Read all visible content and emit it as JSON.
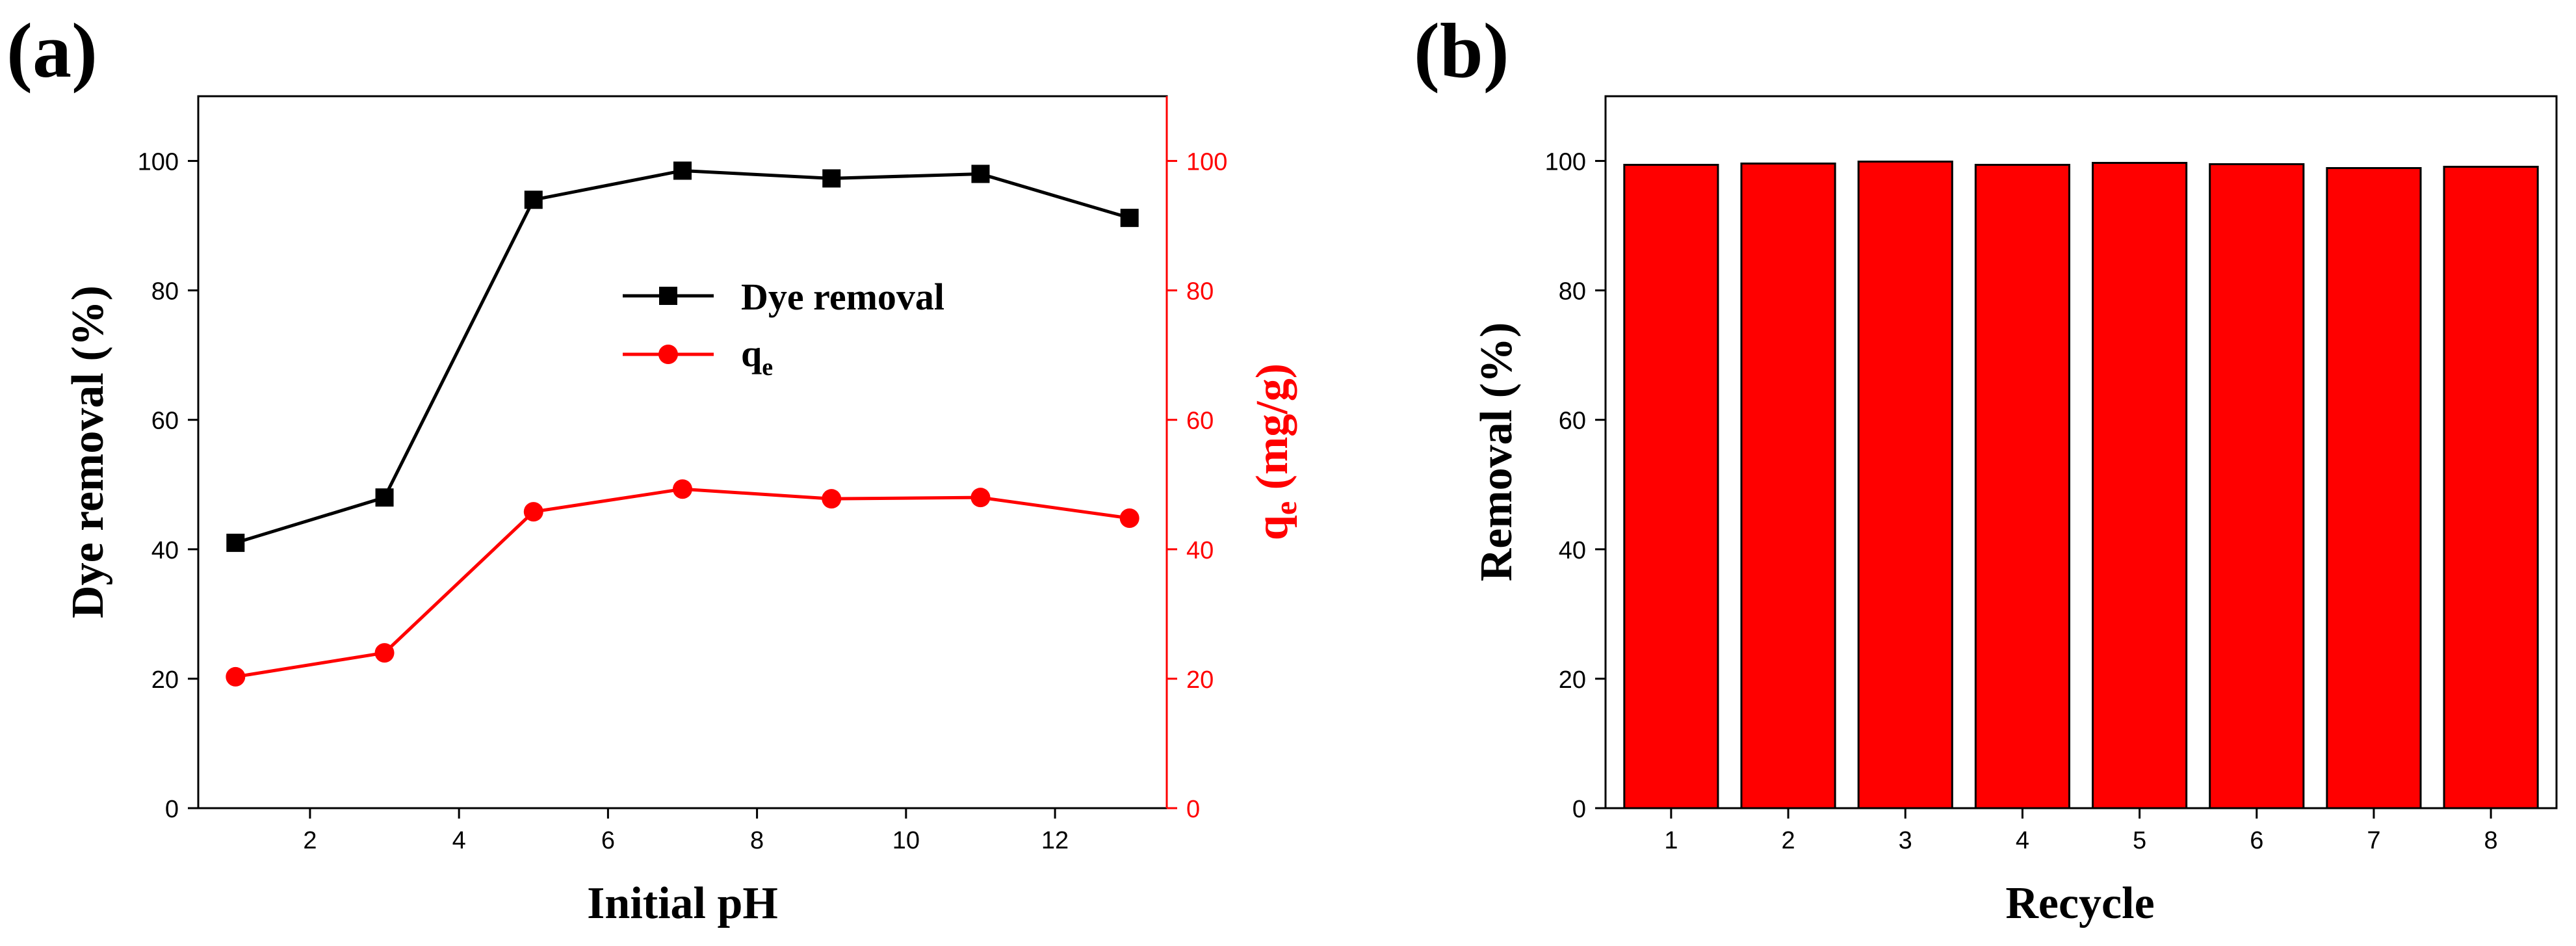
{
  "chart_data": [
    {
      "panel_label": "(a)",
      "type": "line",
      "x": [
        1,
        3,
        5,
        7,
        9,
        11,
        13
      ],
      "xlabel": "Initial pH",
      "xlim": [
        0.5,
        13.5
      ],
      "xticks": [
        2,
        4,
        6,
        8,
        10,
        12
      ],
      "ylabel": "Dye removal (%)",
      "ylim": [
        0,
        110
      ],
      "yticks": [
        0,
        20,
        40,
        60,
        80,
        100
      ],
      "y2label_main": "q",
      "y2label_sub": "e",
      "y2label_rest": " (mg/g)",
      "y2lim": [
        0,
        110
      ],
      "y2ticks": [
        0,
        20,
        40,
        60,
        80,
        100
      ],
      "legend_position": "center-right",
      "series": [
        {
          "name": "Dye removal",
          "axis": "left",
          "color": "#000000",
          "marker": "square",
          "values": [
            41,
            48,
            94,
            98.5,
            97.3,
            98,
            91.2
          ]
        },
        {
          "name_main": "q",
          "name_sub": "e",
          "axis": "right",
          "color": "#ff0000",
          "marker": "circle",
          "values": [
            20.3,
            24,
            45.8,
            49.3,
            47.8,
            48,
            44.8
          ]
        }
      ]
    },
    {
      "panel_label": "(b)",
      "type": "bar",
      "categories": [
        "1",
        "2",
        "3",
        "4",
        "5",
        "6",
        "7",
        "8"
      ],
      "values": [
        99.4,
        99.6,
        99.9,
        99.4,
        99.7,
        99.5,
        98.9,
        99.1
      ],
      "xlabel": "Recycle",
      "ylabel": "Removal (%)",
      "ylim": [
        0,
        110
      ],
      "yticks": [
        0,
        20,
        40,
        60,
        80,
        100
      ],
      "bar_color": "#ff0000"
    }
  ]
}
